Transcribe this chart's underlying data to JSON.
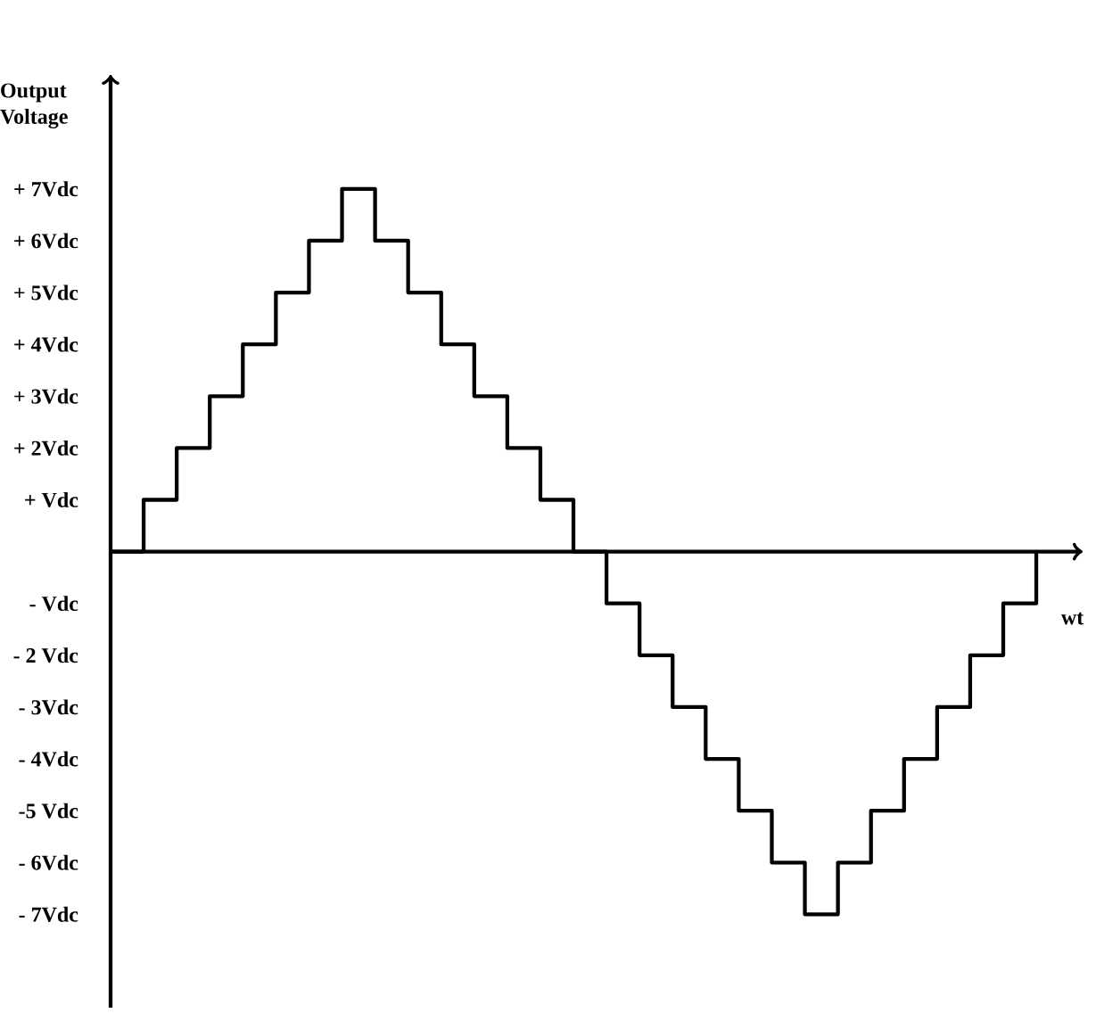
{
  "chart_data": {
    "type": "step",
    "xlabel": "wt",
    "ylabel": "Output Voltage",
    "categories": [
      null,
      null,
      null,
      null,
      null,
      null,
      null,
      null,
      null,
      null,
      null,
      null,
      null,
      null,
      null,
      null,
      null,
      null,
      null,
      null,
      null,
      null,
      null,
      null,
      null,
      null,
      null,
      null,
      null
    ],
    "series": [
      {
        "color": "#000000",
        "values": [
          0,
          1,
          2,
          3,
          4,
          5,
          6,
          7,
          6,
          5,
          4,
          3,
          2,
          1,
          0,
          -1,
          -2,
          -3,
          -4,
          -5,
          -6,
          -7,
          -6,
          -5,
          -4,
          -3,
          -2,
          -1,
          0
        ]
      }
    ],
    "ylim": [
      -8.8,
      9.2
    ],
    "yticks": [
      {
        "value": 7,
        "label": "+ 7Vdc"
      },
      {
        "value": 6,
        "label": "+ 6Vdc"
      },
      {
        "value": 5,
        "label": "+ 5Vdc"
      },
      {
        "value": 4,
        "label": "+ 4Vdc"
      },
      {
        "value": 3,
        "label": "+ 3Vdc"
      },
      {
        "value": 2,
        "label": "+ 2Vdc"
      },
      {
        "value": 1,
        "label": "+  Vdc"
      },
      {
        "value": -1,
        "label": "-  Vdc"
      },
      {
        "value": -2,
        "label": "- 2 Vdc"
      },
      {
        "value": -3,
        "label": "- 3Vdc"
      },
      {
        "value": -4,
        "label": "- 4Vdc"
      },
      {
        "value": -5,
        "label": "-5 Vdc"
      },
      {
        "value": -6,
        "label": "- 6Vdc"
      },
      {
        "value": -7,
        "label": "- 7Vdc"
      }
    ],
    "tick_labels": "y",
    "marker": "none",
    "line_style": "solid",
    "grid": false
  }
}
